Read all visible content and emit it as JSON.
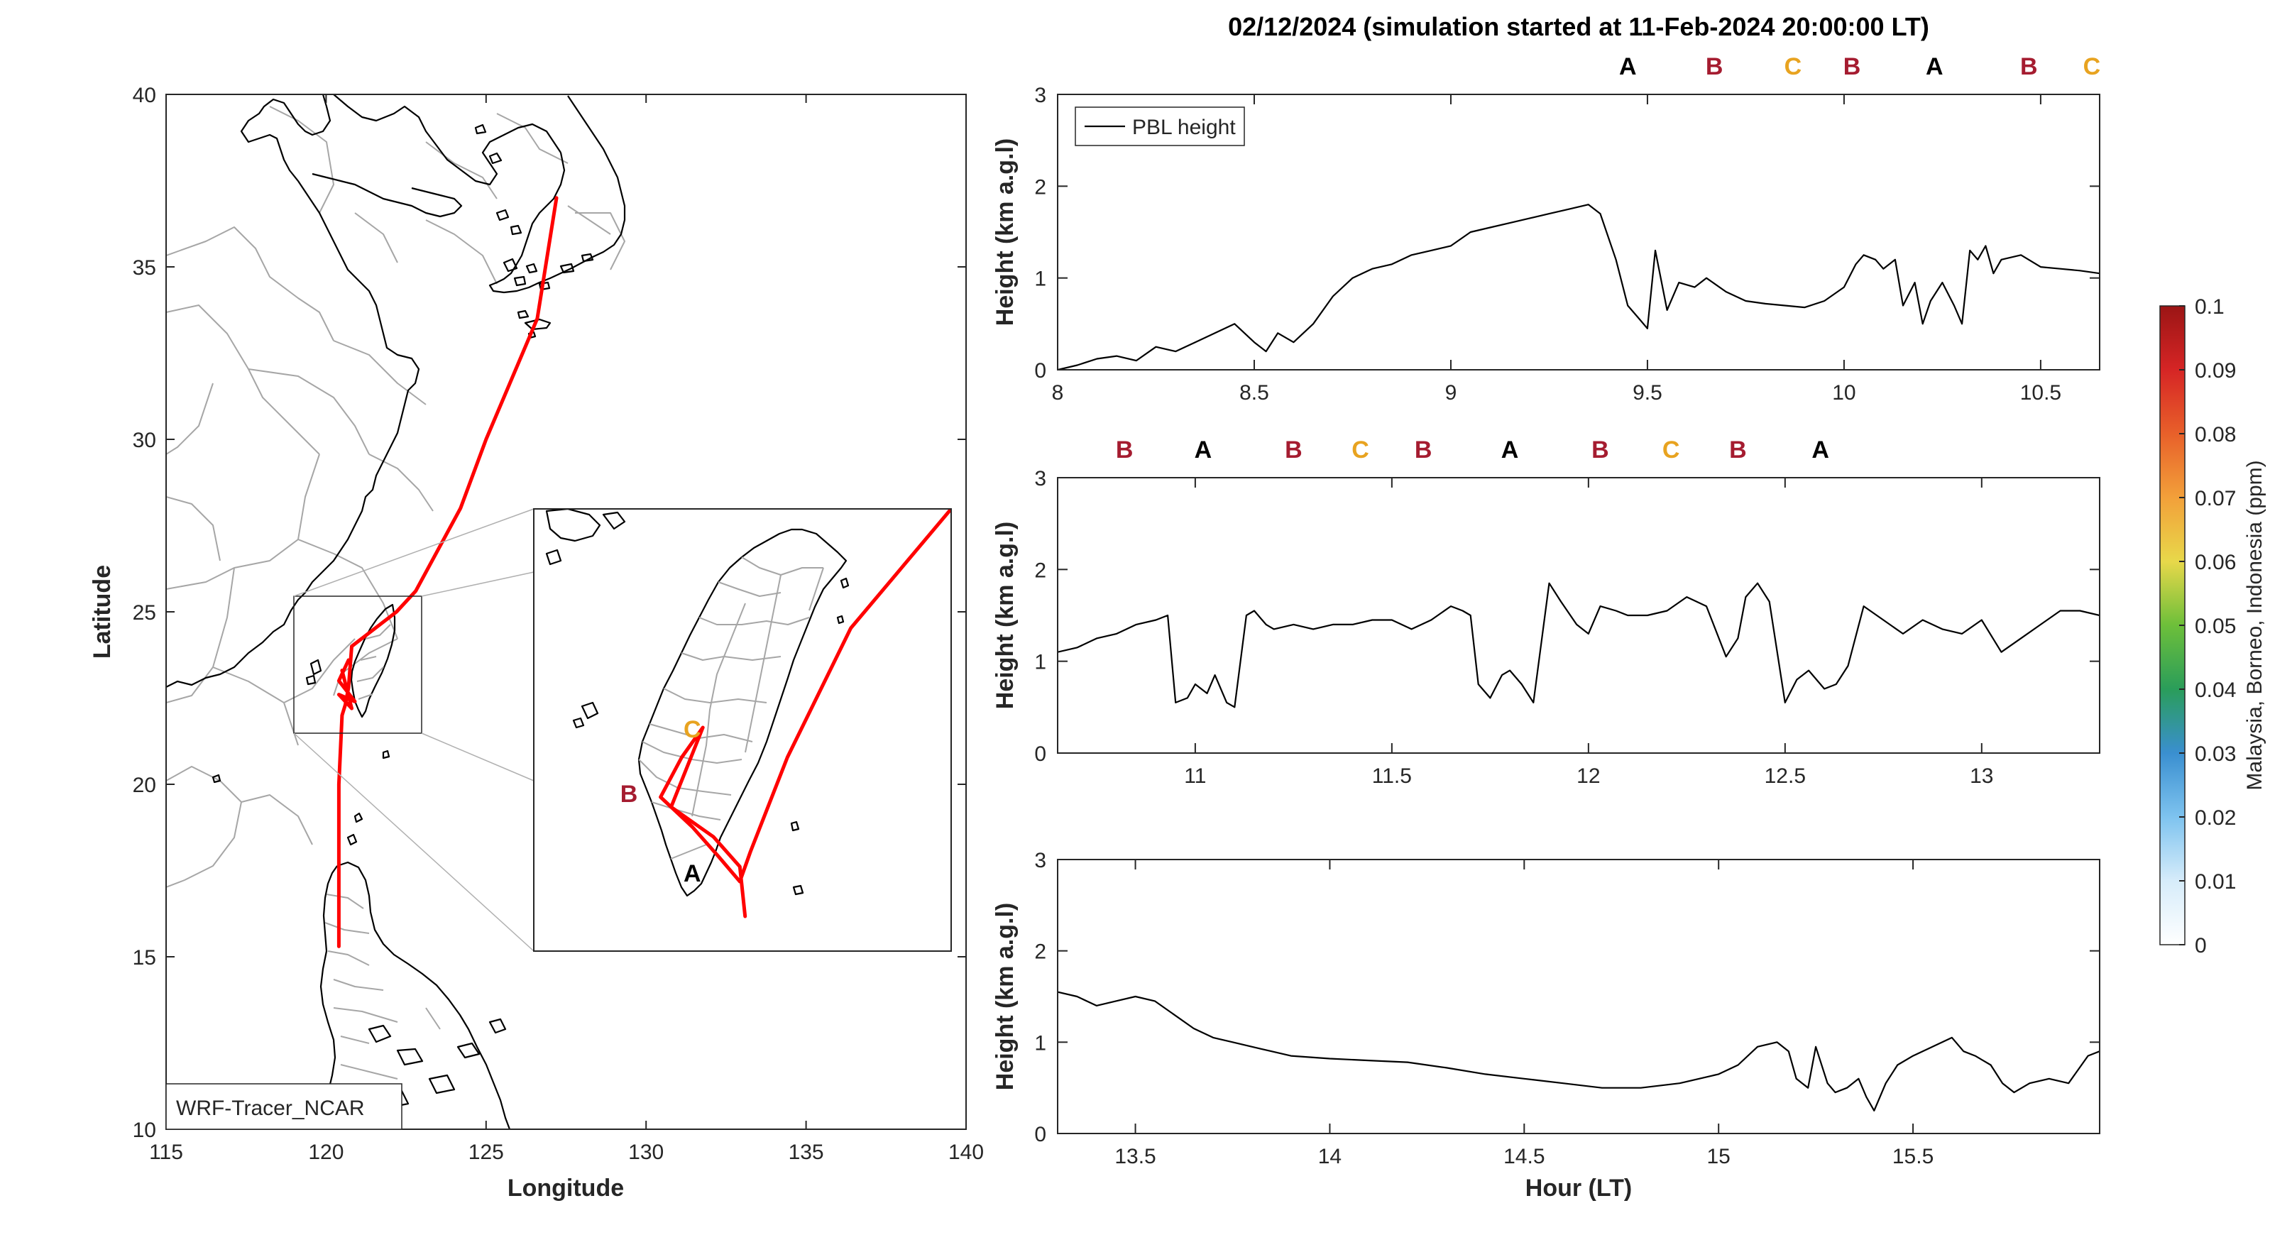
{
  "title": "02/12/2024 (simulation started at 11-Feb-2024 20:00:00 LT)",
  "colors": {
    "A": "#000000",
    "B": "#a51c30",
    "C": "#e8a320",
    "trajectory": "#ff0000"
  },
  "map": {
    "xlabel": "Longitude",
    "ylabel": "Latitude",
    "xlim": [
      115,
      140
    ],
    "ylim": [
      10,
      40
    ],
    "xticks": [
      "115",
      "120",
      "125",
      "130",
      "135",
      "140"
    ],
    "yticks": [
      "10",
      "15",
      "20",
      "25",
      "30",
      "35",
      "40"
    ],
    "model_label": "WRF-Tracer_NCAR",
    "trajectory": [
      [
        127.2,
        37.0
      ],
      [
        126.6,
        33.5
      ],
      [
        125.0,
        30.0
      ],
      [
        124.2,
        28.0
      ],
      [
        122.8,
        25.6
      ],
      [
        122.2,
        25.0
      ],
      [
        120.8,
        24.0
      ],
      [
        120.7,
        22.8
      ],
      [
        120.6,
        22.3
      ],
      [
        120.5,
        22.0
      ],
      [
        120.4,
        20.0
      ],
      [
        120.4,
        18.0
      ],
      [
        120.4,
        16.0
      ],
      [
        120.4,
        15.3
      ]
    ],
    "trajectory_local": [
      [
        120.7,
        23.6
      ],
      [
        120.4,
        23.0
      ],
      [
        120.9,
        22.4
      ],
      [
        120.4,
        22.6
      ],
      [
        120.8,
        22.2
      ],
      [
        120.5,
        23.3
      ]
    ],
    "inset_markers": [
      {
        "label": "C",
        "lon": 120.4,
        "lat": 23.4
      },
      {
        "label": "B",
        "lon": 119.8,
        "lat": 22.75
      },
      {
        "label": "A",
        "lon": 120.4,
        "lat": 21.95
      }
    ],
    "inset_trajectory": [
      [
        122.85,
        25.7
      ],
      [
        121.9,
        24.5
      ],
      [
        121.3,
        23.2
      ],
      [
        120.95,
        22.25
      ],
      [
        120.85,
        21.95
      ],
      [
        120.65,
        22.2
      ],
      [
        120.4,
        22.5
      ],
      [
        120.2,
        22.7
      ],
      [
        120.1,
        22.8
      ],
      [
        120.3,
        23.2
      ],
      [
        120.5,
        23.5
      ],
      [
        120.2,
        22.7
      ],
      [
        120.6,
        22.4
      ],
      [
        120.85,
        22.1
      ],
      [
        120.9,
        21.6
      ]
    ]
  },
  "panels": [
    {
      "ylabel": "Height (km a.g.l)",
      "xlim": [
        8,
        10.65
      ],
      "ylim": [
        0,
        3
      ],
      "xticks": [
        "8",
        "8.5",
        "9",
        "9.5",
        "10",
        "10.5"
      ],
      "yticks": [
        "0",
        "1",
        "2",
        "3"
      ],
      "legend": "PBL height",
      "markers": [
        {
          "label": "A",
          "x": 9.45
        },
        {
          "label": "B",
          "x": 9.67
        },
        {
          "label": "C",
          "x": 9.87
        },
        {
          "label": "B",
          "x": 10.02
        },
        {
          "label": "A",
          "x": 10.23
        },
        {
          "label": "B",
          "x": 10.47
        },
        {
          "label": "C",
          "x": 10.63
        }
      ],
      "x": [
        8.0,
        8.05,
        8.1,
        8.15,
        8.2,
        8.25,
        8.3,
        8.35,
        8.4,
        8.45,
        8.5,
        8.53,
        8.56,
        8.6,
        8.65,
        8.7,
        8.75,
        8.8,
        8.85,
        8.9,
        8.95,
        9.0,
        9.05,
        9.1,
        9.15,
        9.2,
        9.25,
        9.3,
        9.35,
        9.38,
        9.42,
        9.45,
        9.48,
        9.5,
        9.52,
        9.55,
        9.58,
        9.62,
        9.65,
        9.7,
        9.75,
        9.8,
        9.85,
        9.9,
        9.95,
        10.0,
        10.03,
        10.05,
        10.08,
        10.1,
        10.13,
        10.15,
        10.18,
        10.2,
        10.22,
        10.25,
        10.28,
        10.3,
        10.32,
        10.34,
        10.36,
        10.38,
        10.4,
        10.45,
        10.5,
        10.55,
        10.6,
        10.65
      ],
      "y": [
        0.0,
        0.05,
        0.12,
        0.15,
        0.1,
        0.25,
        0.2,
        0.3,
        0.4,
        0.5,
        0.3,
        0.2,
        0.4,
        0.3,
        0.5,
        0.8,
        1.0,
        1.1,
        1.15,
        1.25,
        1.3,
        1.35,
        1.5,
        1.55,
        1.6,
        1.65,
        1.7,
        1.75,
        1.8,
        1.7,
        1.2,
        0.7,
        0.55,
        0.45,
        1.3,
        0.65,
        0.95,
        0.9,
        1.0,
        0.85,
        0.75,
        0.72,
        0.7,
        0.68,
        0.75,
        0.9,
        1.15,
        1.25,
        1.2,
        1.1,
        1.2,
        0.7,
        0.95,
        0.5,
        0.75,
        0.95,
        0.7,
        0.5,
        1.3,
        1.2,
        1.35,
        1.05,
        1.2,
        1.25,
        1.12,
        1.1,
        1.08,
        1.05
      ]
    },
    {
      "ylabel": "Height (km a.g.l)",
      "xlim": [
        10.65,
        13.3
      ],
      "ylim": [
        0,
        3
      ],
      "xticks": [
        "11",
        "11.5",
        "12",
        "12.5",
        "13"
      ],
      "yticks": [
        "0",
        "1",
        "2",
        "3"
      ],
      "markers": [
        {
          "label": "B",
          "x": 10.82
        },
        {
          "label": "A",
          "x": 11.02
        },
        {
          "label": "B",
          "x": 11.25
        },
        {
          "label": "C",
          "x": 11.42
        },
        {
          "label": "B",
          "x": 11.58
        },
        {
          "label": "A",
          "x": 11.8
        },
        {
          "label": "B",
          "x": 12.03
        },
        {
          "label": "C",
          "x": 12.21
        },
        {
          "label": "B",
          "x": 12.38
        },
        {
          "label": "A",
          "x": 12.59
        }
      ],
      "x": [
        10.65,
        10.7,
        10.75,
        10.8,
        10.85,
        10.9,
        10.93,
        10.95,
        10.98,
        11.0,
        11.03,
        11.05,
        11.08,
        11.1,
        11.13,
        11.15,
        11.18,
        11.2,
        11.25,
        11.3,
        11.35,
        11.4,
        11.45,
        11.5,
        11.55,
        11.6,
        11.65,
        11.68,
        11.7,
        11.72,
        11.75,
        11.78,
        11.8,
        11.83,
        11.86,
        11.9,
        11.93,
        11.97,
        12.0,
        12.03,
        12.07,
        12.1,
        12.15,
        12.2,
        12.25,
        12.3,
        12.35,
        12.38,
        12.4,
        12.43,
        12.46,
        12.5,
        12.53,
        12.56,
        12.6,
        12.63,
        12.66,
        12.7,
        12.75,
        12.8,
        12.85,
        12.9,
        12.95,
        13.0,
        13.05,
        13.1,
        13.15,
        13.2,
        13.25,
        13.3
      ],
      "y": [
        1.1,
        1.15,
        1.25,
        1.3,
        1.4,
        1.45,
        1.5,
        0.55,
        0.6,
        0.75,
        0.65,
        0.85,
        0.55,
        0.5,
        1.5,
        1.55,
        1.4,
        1.35,
        1.4,
        1.35,
        1.4,
        1.4,
        1.45,
        1.45,
        1.35,
        1.45,
        1.6,
        1.55,
        1.5,
        0.75,
        0.6,
        0.85,
        0.9,
        0.75,
        0.55,
        1.85,
        1.65,
        1.4,
        1.3,
        1.6,
        1.55,
        1.5,
        1.5,
        1.55,
        1.7,
        1.6,
        1.05,
        1.25,
        1.7,
        1.85,
        1.65,
        0.55,
        0.8,
        0.9,
        0.7,
        0.75,
        0.95,
        1.6,
        1.45,
        1.3,
        1.45,
        1.35,
        1.3,
        1.45,
        1.1,
        1.25,
        1.4,
        1.55,
        1.55,
        1.5
      ]
    },
    {
      "ylabel": "Height (km a.g.l)",
      "xlabel": "Hour (LT)",
      "xlim": [
        13.3,
        15.98
      ],
      "ylim": [
        0,
        3
      ],
      "xticks": [
        "13.5",
        "14",
        "14.5",
        "15",
        "15.5"
      ],
      "yticks": [
        "0",
        "1",
        "2",
        "3"
      ],
      "x": [
        13.3,
        13.35,
        13.4,
        13.45,
        13.5,
        13.55,
        13.6,
        13.65,
        13.7,
        13.75,
        13.8,
        13.85,
        13.9,
        14.0,
        14.1,
        14.2,
        14.3,
        14.4,
        14.5,
        14.6,
        14.7,
        14.8,
        14.9,
        15.0,
        15.05,
        15.1,
        15.15,
        15.18,
        15.2,
        15.23,
        15.25,
        15.28,
        15.3,
        15.33,
        15.36,
        15.38,
        15.4,
        15.43,
        15.46,
        15.5,
        15.55,
        15.6,
        15.63,
        15.66,
        15.7,
        15.73,
        15.76,
        15.8,
        15.85,
        15.9,
        15.95,
        15.98
      ],
      "y": [
        1.55,
        1.5,
        1.4,
        1.45,
        1.5,
        1.45,
        1.3,
        1.15,
        1.05,
        1.0,
        0.95,
        0.9,
        0.85,
        0.82,
        0.8,
        0.78,
        0.72,
        0.65,
        0.6,
        0.55,
        0.5,
        0.5,
        0.55,
        0.65,
        0.75,
        0.95,
        1.0,
        0.9,
        0.6,
        0.5,
        0.95,
        0.55,
        0.45,
        0.5,
        0.6,
        0.4,
        0.25,
        0.55,
        0.75,
        0.85,
        0.95,
        1.05,
        0.9,
        0.85,
        0.75,
        0.55,
        0.45,
        0.55,
        0.6,
        0.55,
        0.85,
        0.9
      ]
    }
  ],
  "colorbar": {
    "label": "Malaysia, Borneo, Indonesia (ppm)",
    "ticks": [
      "0",
      "0.01",
      "0.02",
      "0.03",
      "0.04",
      "0.05",
      "0.06",
      "0.07",
      "0.08",
      "0.09",
      "0.1"
    ],
    "stops": [
      "#ffffff",
      "#d6ecfa",
      "#7ec3ef",
      "#3a8fd0",
      "#2a9d5a",
      "#6dbf3a",
      "#e8d84a",
      "#f2a03a",
      "#e8602a",
      "#d62525",
      "#9b1515"
    ]
  }
}
